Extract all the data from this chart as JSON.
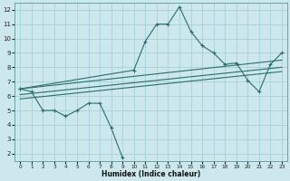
{
  "xlabel": "Humidex (Indice chaleur)",
  "background_color": "#cde8ec",
  "grid_color": "#9ecdd4",
  "line_color": "#2a6e6b",
  "xlim": [
    -0.5,
    23.5
  ],
  "ylim": [
    1.5,
    12.5
  ],
  "xticks": [
    0,
    1,
    2,
    3,
    4,
    5,
    6,
    7,
    8,
    9,
    10,
    11,
    12,
    13,
    14,
    15,
    16,
    17,
    18,
    19,
    20,
    21,
    22,
    23
  ],
  "yticks": [
    2,
    3,
    4,
    5,
    6,
    7,
    8,
    9,
    10,
    11,
    12
  ],
  "series_down": {
    "x": [
      0,
      1,
      2,
      3,
      4,
      5,
      6,
      7,
      8,
      9
    ],
    "y": [
      6.5,
      6.3,
      5.0,
      5.0,
      4.6,
      5.0,
      5.5,
      5.5,
      3.8,
      1.7
    ]
  },
  "series_up": {
    "x": [
      0,
      10,
      11,
      12,
      13,
      14,
      15,
      16,
      17,
      18,
      19,
      20,
      21,
      22,
      23
    ],
    "y": [
      6.5,
      7.8,
      9.8,
      11.0,
      11.0,
      12.2,
      10.5,
      9.5,
      9.0,
      8.2,
      8.3,
      7.1,
      6.3,
      8.2,
      9.0
    ]
  },
  "trend_lines": [
    {
      "x0": 0,
      "y0": 6.5,
      "x1": 23,
      "y1": 8.5
    },
    {
      "x0": 0,
      "y0": 6.1,
      "x1": 23,
      "y1": 8.0
    },
    {
      "x0": 0,
      "y0": 5.8,
      "x1": 23,
      "y1": 7.7
    }
  ]
}
